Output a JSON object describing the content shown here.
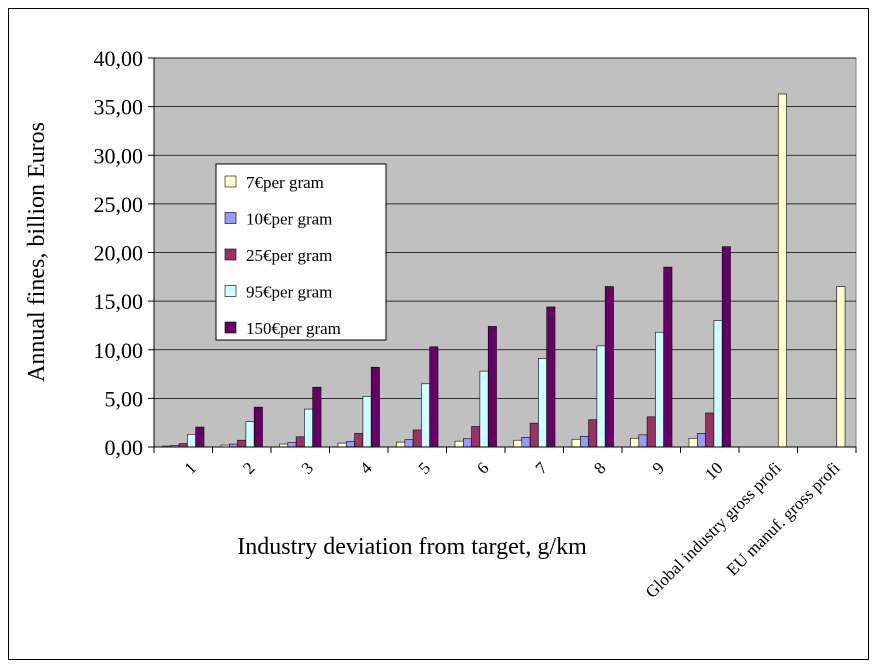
{
  "chart_data": {
    "type": "bar",
    "xlabel": "Industry deviation from target, g/km",
    "ylabel": "Annual fines,  billion Euros",
    "ylim": [
      0,
      40
    ],
    "yticks": [
      0,
      5,
      10,
      15,
      20,
      25,
      30,
      35,
      40
    ],
    "ytick_labels": [
      "0,00",
      "5,00",
      "10,00",
      "15,00",
      "20,00",
      "25,00",
      "30,00",
      "35,00",
      "40,00"
    ],
    "grid": "horizontal",
    "legend_position": "left-middle",
    "categories": [
      "1",
      "2",
      "3",
      "4",
      "5",
      "6",
      "7",
      "8",
      "9",
      "10",
      "Global industry gross profit",
      "EU manuf. gross profit"
    ],
    "category_labels": [
      "1",
      "2",
      "3",
      "4",
      "5",
      "6",
      "7",
      "8",
      "9",
      "10",
      "Global industry gross profi",
      "EU manuf. gross profi"
    ],
    "series": [
      {
        "name": "7€per gram",
        "color": "#ffffcc",
        "values": [
          0.1,
          0.2,
          0.3,
          0.4,
          0.5,
          0.6,
          0.7,
          0.8,
          0.9,
          0.9,
          36.3,
          16.5
        ]
      },
      {
        "name": "10€per gram",
        "color": "#9999ff",
        "values": [
          0.15,
          0.3,
          0.45,
          0.55,
          0.75,
          0.85,
          1.0,
          1.1,
          1.25,
          1.4,
          null,
          null
        ]
      },
      {
        "name": "25€per gram",
        "color": "#993366",
        "values": [
          0.35,
          0.7,
          1.05,
          1.4,
          1.75,
          2.1,
          2.45,
          2.8,
          3.1,
          3.5,
          null,
          null
        ]
      },
      {
        "name": "95€per gram",
        "color": "#ccffff",
        "values": [
          1.3,
          2.6,
          3.9,
          5.2,
          6.5,
          7.8,
          9.1,
          10.4,
          11.8,
          13.0,
          null,
          null
        ]
      },
      {
        "name": "150€per gram",
        "color": "#660066",
        "values": [
          2.05,
          4.1,
          6.15,
          8.2,
          10.3,
          12.4,
          14.4,
          16.5,
          18.5,
          20.6,
          null,
          null
        ]
      }
    ]
  }
}
